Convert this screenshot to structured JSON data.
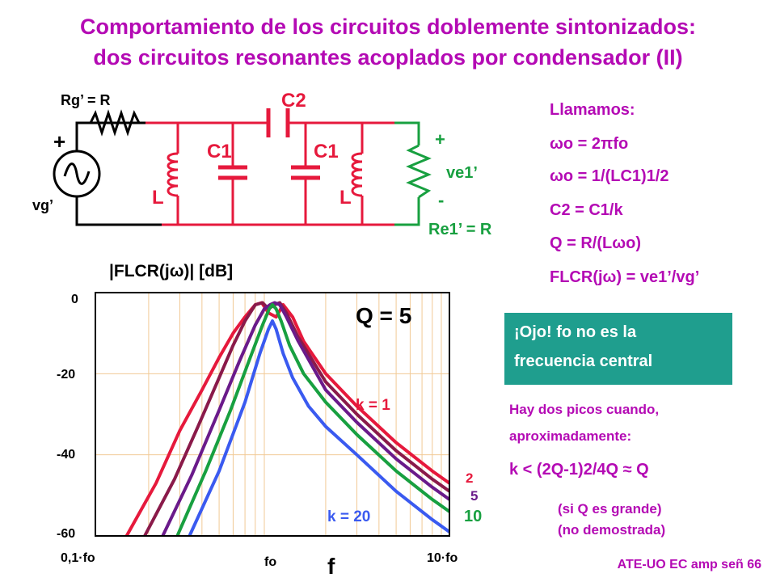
{
  "title": {
    "line1": "Comportamiento de los circuitos doblemente sintonizados:",
    "line2": "dos circuitos resonantes acoplados por condensador (II)"
  },
  "circuit": {
    "rg_label": "Rg’ = R",
    "vg_label": "vg’",
    "c2_label": "C2",
    "c1_left_label": "C1",
    "c1_right_label": "C1",
    "l_left_label": "L",
    "l_right_label": "L",
    "ve1_label": "ve1’",
    "re1_label": "Re1’ = R",
    "plus_left": "+",
    "plus_right": "+",
    "minus_right": "-"
  },
  "formulas": {
    "heading": "Llamamos:",
    "f1": "ωo = 2πfo",
    "f2": "ωo = 1/(LC1)1/2",
    "f3": "C2 = C1/k",
    "f4": "Q = R/(Lωo)",
    "f5": "FLCR(jω) = ve1’/vg’"
  },
  "warning": {
    "line1": "¡Ojo! fo no es la",
    "line2": "frecuencia central"
  },
  "notes": {
    "line1": "Hay dos picos cuando,",
    "line2": "aproximadamente:",
    "condition": "k < (2Q-1)2/4Q ≈ Q",
    "line3": "(si Q es grande)",
    "line4": "(no demostrada)"
  },
  "footer": "ATE-UO EC amp señ 66",
  "chart_data": {
    "type": "line",
    "ylabel": "|FLCR(jω)| [dB]",
    "xlabel": "f",
    "x_scale": "log",
    "x_ticks": [
      "0,1·fo",
      "fo",
      "10·fo"
    ],
    "y_ticks": [
      "0",
      "-20",
      "-40",
      "-60"
    ],
    "ylim": [
      -60,
      0
    ],
    "annotation": "Q = 5",
    "colors": {
      "k1": "#e6193c",
      "k2": "#8a1a4a",
      "k5": "#6a1a8a",
      "k10": "#18a040",
      "k20": "#3a5af0"
    },
    "series": [
      {
        "name": "k = 1",
        "color": "#e6193c",
        "label_color": "#e6193c",
        "x": [
          0.15,
          0.22,
          0.3,
          0.4,
          0.5,
          0.6,
          0.7,
          0.8,
          0.87,
          0.95,
          1.05,
          1.15,
          1.3,
          1.5,
          2,
          3,
          5,
          8,
          10
        ],
        "y": [
          -60,
          -47,
          -34,
          -24,
          -16,
          -10,
          -6,
          -3,
          -2.5,
          -5,
          -6,
          -3,
          -6,
          -12,
          -20,
          -28,
          -37,
          -44,
          -47
        ]
      },
      {
        "name": "2",
        "color": "#8a1a4a",
        "label_color": "#e6193c",
        "x": [
          0.19,
          0.28,
          0.38,
          0.5,
          0.6,
          0.7,
          0.8,
          0.88,
          0.95,
          1.03,
          1.1,
          1.2,
          1.4,
          2,
          3,
          5,
          8,
          10
        ],
        "y": [
          -60,
          -46,
          -33,
          -21,
          -13,
          -7,
          -3,
          -2.5,
          -4,
          -3,
          -2.5,
          -5,
          -11,
          -22,
          -30,
          -39,
          -46,
          -49
        ]
      },
      {
        "name": "5",
        "color": "#6a1a8a",
        "label_color": "#6a1a8a",
        "x": [
          0.24,
          0.35,
          0.5,
          0.65,
          0.8,
          0.9,
          0.97,
          1.03,
          1.1,
          1.2,
          1.4,
          2,
          3,
          5,
          8,
          10
        ],
        "y": [
          -60,
          -45,
          -29,
          -17,
          -8,
          -4,
          -3,
          -2.5,
          -3,
          -6,
          -12,
          -24,
          -32,
          -41,
          -48,
          -51
        ]
      },
      {
        "name": "10",
        "color": "#18a040",
        "label_color": "#18a040",
        "x": [
          0.29,
          0.42,
          0.58,
          0.75,
          0.88,
          0.96,
          1.0,
          1.05,
          1.12,
          1.25,
          1.5,
          2,
          3,
          5,
          8,
          10
        ],
        "y": [
          -60,
          -44,
          -29,
          -16,
          -8,
          -4,
          -3,
          -4,
          -7,
          -13,
          -20,
          -27,
          -35,
          -44,
          -51,
          -54
        ]
      },
      {
        "name": "k = 20",
        "color": "#3a5af0",
        "label_color": "#3a5af0",
        "x": [
          0.34,
          0.5,
          0.7,
          0.85,
          0.95,
          1.0,
          1.05,
          1.15,
          1.3,
          1.6,
          2,
          3,
          5,
          8,
          10
        ],
        "y": [
          -60,
          -44,
          -27,
          -15,
          -9,
          -7,
          -9,
          -15,
          -21,
          -28,
          -33,
          -40,
          -49,
          -56,
          -59
        ]
      }
    ]
  }
}
